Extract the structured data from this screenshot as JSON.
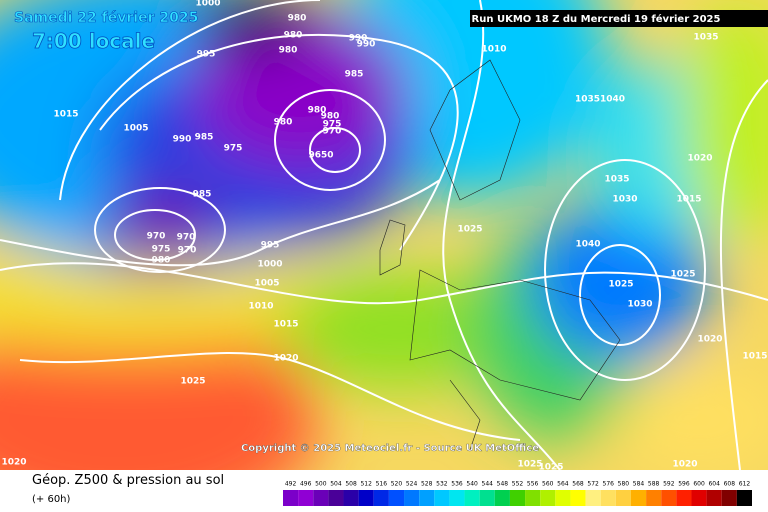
{
  "header": {
    "date": "Samedi 22 février 2025",
    "time": "7:00 locale",
    "run": "Run UKMO 18 Z du Mercredi 19 février 2025"
  },
  "copyright": "Copyright © 2025 Meteociel.fr - Source UK MetOffice",
  "footer": {
    "title": "Géop. Z500 & pression au sol",
    "lead": "(+ 60h)"
  },
  "isobar_labels": [
    1000,
    980,
    990,
    990,
    980,
    995,
    980,
    985,
    1010,
    1035,
    1015,
    1005,
    990,
    985,
    975,
    980,
    980,
    980,
    975,
    970,
    9650,
    10351040,
    1020,
    1035,
    1030,
    1015,
    985,
    1025,
    970,
    970,
    995,
    1040,
    975,
    970,
    980,
    1000,
    1025,
    1005,
    1025,
    1010,
    1030,
    1015,
    1020,
    1020,
    1015,
    1025,
    1020,
    1025,
    1025,
    1020
  ],
  "scale": {
    "labels": [
      492,
      496,
      500,
      504,
      508,
      512,
      516,
      520,
      524,
      528,
      532,
      536,
      540,
      544,
      548,
      552,
      556,
      560,
      564,
      568,
      572,
      576,
      580,
      584,
      588,
      592,
      596,
      600,
      604,
      608,
      612
    ],
    "colors": [
      "#7b00c9",
      "#9000d4",
      "#6a00b8",
      "#4a0098",
      "#2a00a8",
      "#0000c8",
      "#0028e6",
      "#0050ff",
      "#0078ff",
      "#00a0ff",
      "#00c8ff",
      "#00e6f0",
      "#00f0c0",
      "#00e090",
      "#00d050",
      "#40d000",
      "#80e000",
      "#b0f000",
      "#e0ff00",
      "#ffff00",
      "#fff080",
      "#ffe060",
      "#ffd040",
      "#ffb000",
      "#ff8000",
      "#ff5000",
      "#ff2000",
      "#e00000",
      "#b00000",
      "#800000",
      "#000000"
    ]
  }
}
